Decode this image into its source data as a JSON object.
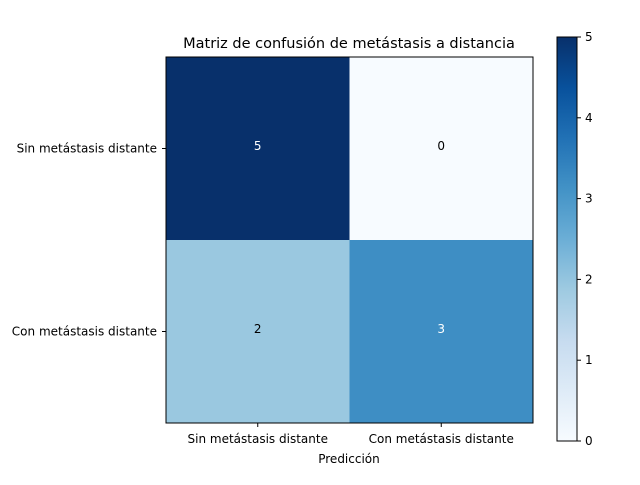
{
  "chart_data": {
    "type": "heatmap",
    "title": "Matriz de confusión de metástasis a distancia",
    "xlabel": "Predicción",
    "ylabel": "",
    "x_categories": [
      "Sin metástasis distante",
      "Con metástasis distante"
    ],
    "y_categories": [
      "Sin metástasis distante",
      "Con metástasis distante"
    ],
    "values": [
      [
        5,
        0
      ],
      [
        2,
        3
      ]
    ],
    "colormap": "Blues",
    "colorbar": {
      "min": 0,
      "max": 5,
      "ticks": [
        "0",
        "1",
        "2",
        "3",
        "4",
        "5"
      ]
    },
    "cell_colors": [
      [
        "#08306b",
        "#f7fbff"
      ],
      [
        "#9ac8e0",
        "#3e8ec4"
      ]
    ],
    "cell_text_colors": [
      [
        "#ffffff",
        "#000000"
      ],
      [
        "#000000",
        "#ffffff"
      ]
    ],
    "colorbar_gradient": [
      "#f7fbff",
      "#deebf7",
      "#c6dbef",
      "#9ecae1",
      "#6baed6",
      "#4292c6",
      "#2171b5",
      "#08519c",
      "#08306b"
    ]
  }
}
